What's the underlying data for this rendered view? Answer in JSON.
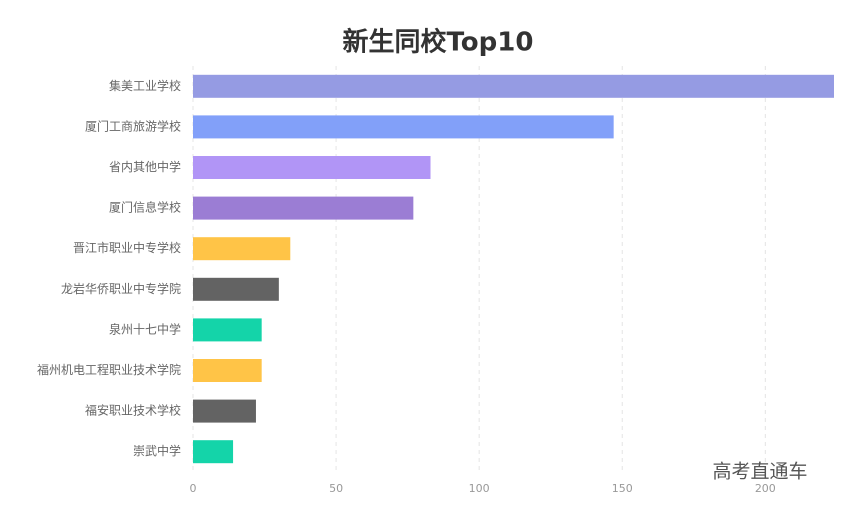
{
  "chart_data": {
    "type": "barh",
    "title": "新生同校Top10",
    "categories": [
      "集美工业学校",
      "厦门工商旅游学校",
      "省内其他中学",
      "厦门信息学校",
      "晋江市职业中专学校",
      "龙岩华侨职业中专学院",
      "泉州十七中学",
      "福州机电工程职业技术学院",
      "福安职业技术学校",
      "崇武中学"
    ],
    "values": [
      224,
      147,
      83,
      77,
      34,
      30,
      24,
      24,
      22,
      14
    ],
    "colors": [
      "#959be3",
      "#82a0f9",
      "#b195f6",
      "#9b7dd4",
      "#ffc447",
      "#636363",
      "#14d4a9",
      "#ffc447",
      "#636363",
      "#14d4a9"
    ],
    "xlim": [
      0,
      224
    ],
    "xticks": [
      0,
      50,
      100,
      150,
      200
    ],
    "grid": true,
    "watermark": "高考直通车"
  }
}
